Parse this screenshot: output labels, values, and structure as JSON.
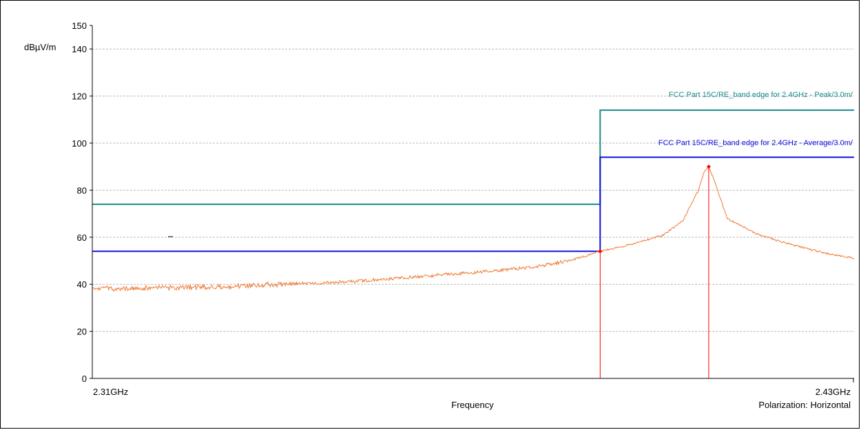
{
  "chart_data": {
    "type": "line",
    "ylabel": "dBµV/m",
    "xlabel": "Frequency",
    "polarization": "Polarization: Horizontal",
    "x_start_label": "2.31GHz",
    "x_end_label": "2.43GHz",
    "xlim": [
      2.31,
      2.43
    ],
    "ylim": [
      0,
      150
    ],
    "y_ticks": [
      0,
      20,
      40,
      60,
      80,
      100,
      120,
      140,
      150
    ],
    "grid": true,
    "series": [
      {
        "name": "FCC Part 15C/RE_band edge for 2.4GHz  - Peak/3.0m/",
        "color": "#1a8a8a",
        "x": [
          2.31,
          2.39,
          2.39,
          2.43
        ],
        "values": [
          74,
          74,
          114,
          114
        ]
      },
      {
        "name": "FCC Part 15C/RE_band edge for 2.4GHz  - Average/3.0m/",
        "color": "#1010e0",
        "x": [
          2.31,
          2.39,
          2.39,
          2.43
        ],
        "values": [
          54,
          54,
          94,
          94
        ]
      },
      {
        "name": "",
        "color": "#f07830",
        "x": [
          2.31,
          2.32,
          2.33,
          2.34,
          2.35,
          2.36,
          2.37,
          2.38,
          2.385,
          2.389,
          2.39,
          2.395,
          2.4,
          2.403,
          2.4055,
          2.4064,
          2.4071,
          2.408,
          2.41,
          2.415,
          2.42,
          2.425,
          2.43
        ],
        "values": [
          38,
          38.5,
          39,
          40,
          41,
          43,
          45,
          47.5,
          50,
          53,
          54,
          57,
          61,
          67,
          80,
          88,
          90,
          84,
          68,
          61,
          57,
          53.5,
          51
        ]
      }
    ],
    "markers": [
      {
        "x": 2.39,
        "y": 54,
        "color": "#ff0000"
      },
      {
        "x": 2.4071,
        "y": 90,
        "color": "#ff0000"
      }
    ],
    "colors": {
      "grid": "#b8b8b8",
      "axis": "#000000",
      "marker": "#ff0000"
    }
  }
}
